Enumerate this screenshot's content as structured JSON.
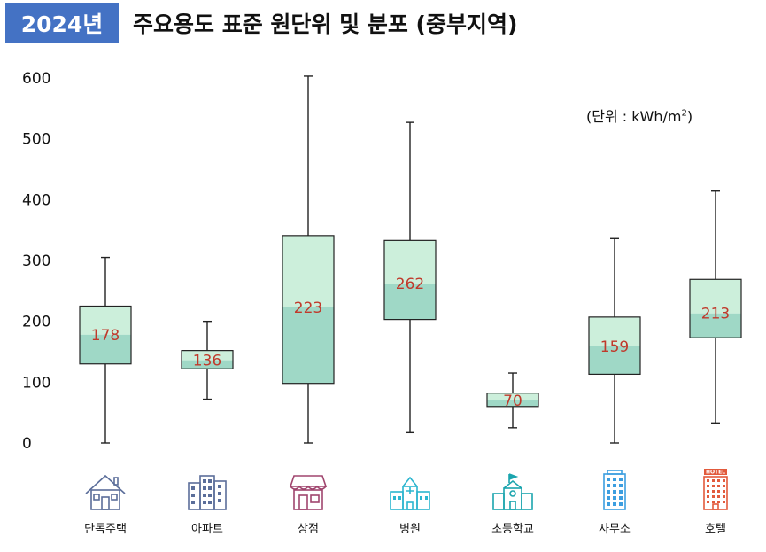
{
  "header": {
    "year": "2024년",
    "title": "주요용도 표준 원단위 및 분포 (중부지역)"
  },
  "unit": {
    "prefix": "(단위 : kWh/m",
    "superscript": "2",
    "suffix": ")"
  },
  "colors": {
    "badge": "#4472c4",
    "upper_box": "#ccefdb",
    "lower_box": "#9fd8c6",
    "median_text": "#c0392b"
  },
  "chart_data": {
    "type": "boxplot",
    "ylim": [
      0,
      600
    ],
    "yticks": [
      0,
      100,
      200,
      300,
      400,
      500,
      600
    ],
    "grid": false,
    "categories": [
      {
        "name": "단독주택",
        "icon": "house-icon",
        "icon_color": "#5b6e9a",
        "min": 0,
        "q1": 130,
        "median": 178,
        "q3": 225,
        "max": 305
      },
      {
        "name": "아파트",
        "icon": "apartment-icon",
        "icon_color": "#5b6e9a",
        "min": 72,
        "q1": 122,
        "median": 136,
        "q3": 152,
        "max": 200
      },
      {
        "name": "상점",
        "icon": "store-icon",
        "icon_color": "#a0456e",
        "min": 0,
        "q1": 98,
        "median": 223,
        "q3": 341,
        "max": 603
      },
      {
        "name": "병원",
        "icon": "hospital-icon",
        "icon_color": "#2bb5cf",
        "min": 17,
        "q1": 203,
        "median": 262,
        "q3": 333,
        "max": 527
      },
      {
        "name": "초등학교",
        "icon": "school-icon",
        "icon_color": "#1ba5ae",
        "min": 25,
        "q1": 60,
        "median": 70,
        "q3": 82,
        "max": 115
      },
      {
        "name": "사무소",
        "icon": "office-icon",
        "icon_color": "#3c9ee0",
        "min": 0,
        "q1": 113,
        "median": 159,
        "q3": 207,
        "max": 336
      },
      {
        "name": "호텔",
        "icon": "hotel-icon",
        "icon_text": "HOTEL",
        "icon_color": "#e25a3c",
        "min": 33,
        "q1": 173,
        "median": 213,
        "q3": 269,
        "max": 414
      }
    ]
  }
}
